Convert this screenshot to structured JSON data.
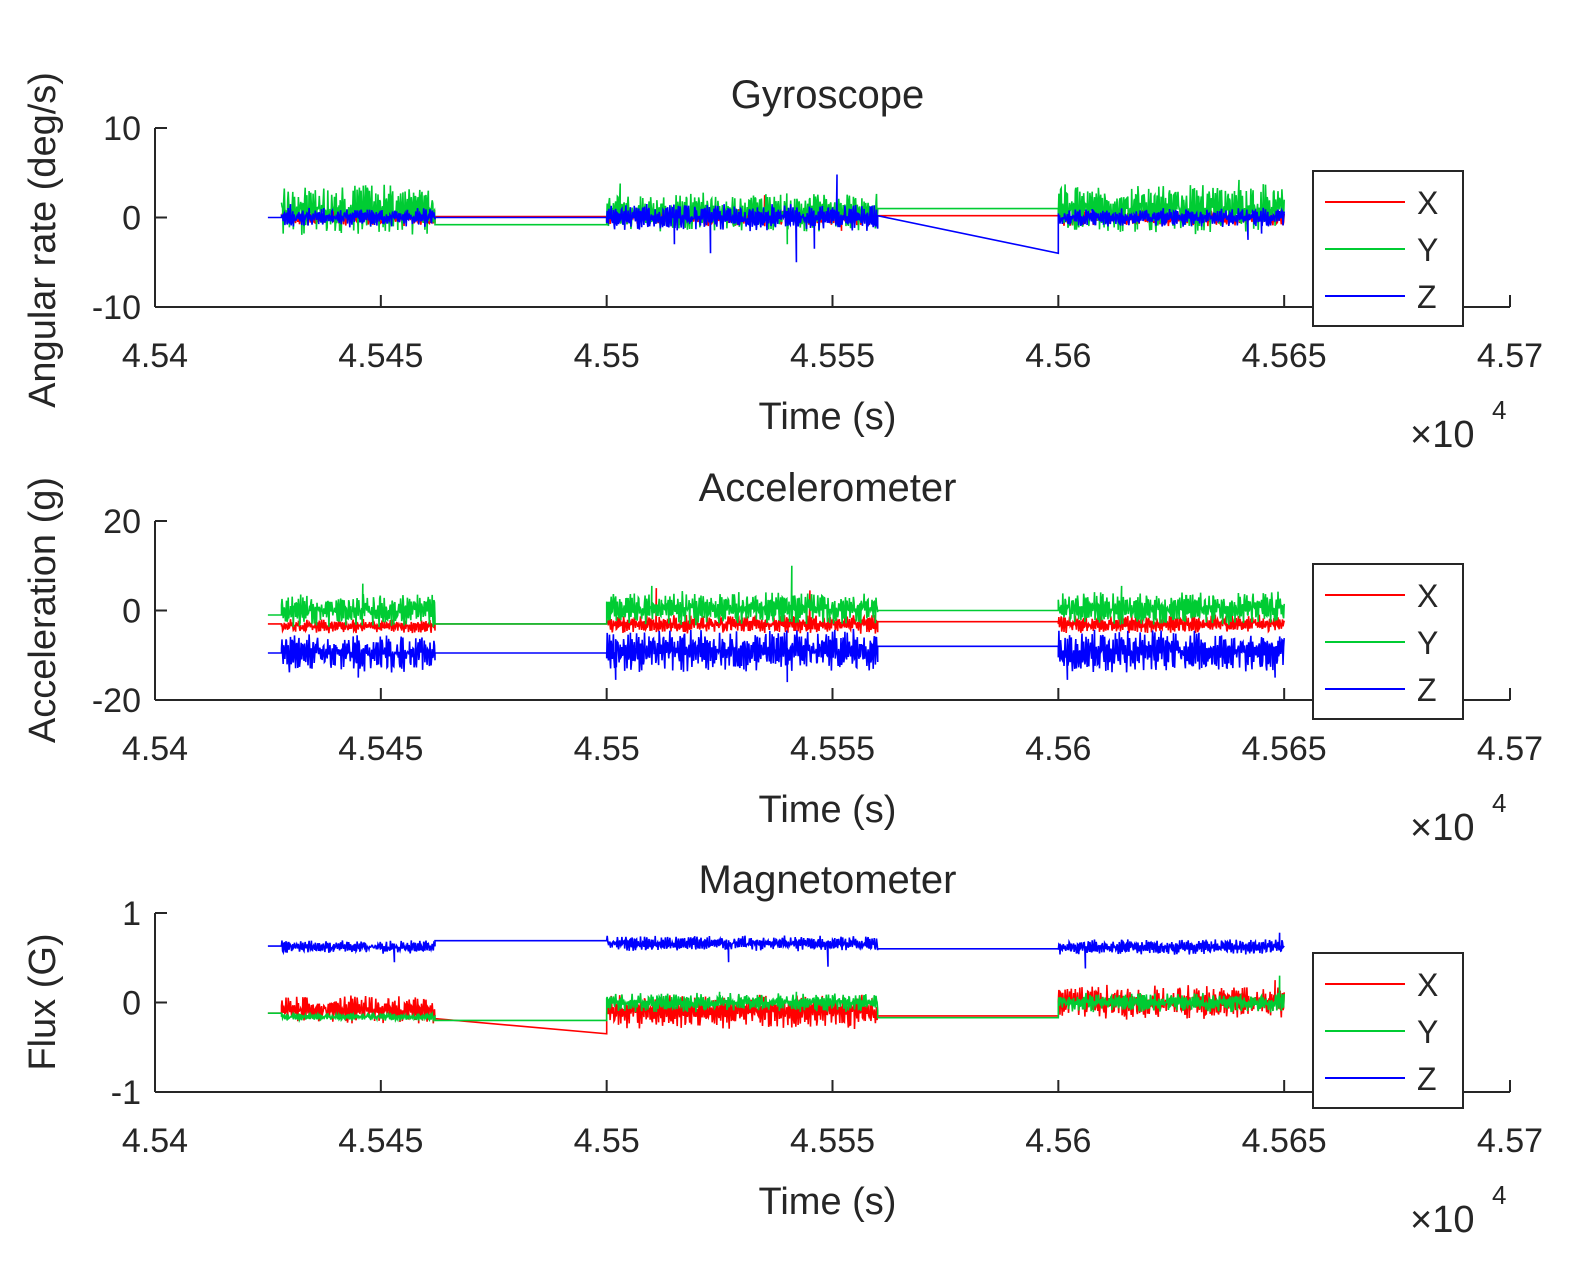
{
  "chart_data": [
    {
      "type": "line",
      "title": "Gyroscope",
      "xlabel": "Time (s)",
      "ylabel": "Angular rate (deg/s)",
      "x_exponent_label": "×10",
      "x_exponent_power": "4",
      "xlim": [
        4.54,
        4.57
      ],
      "ylim": [
        -10,
        10
      ],
      "xticks": [
        "4.54",
        "4.545",
        "4.55",
        "4.555",
        "4.56",
        "4.565",
        "4.57"
      ],
      "yticks": [
        "-10",
        "0",
        "10"
      ],
      "legend": "right",
      "series": [
        {
          "name": "X",
          "color": "#ff0000",
          "segments": [
            {
              "x": [
                4.5428,
                4.5462
              ],
              "base": 0.0,
              "amp": 0.9,
              "spikes": [
                [
                  4.5447,
                  2.5
                ]
              ]
            },
            {
              "x": [
                4.5462,
                4.55
              ],
              "base": 0.1,
              "amp": 0.0
            },
            {
              "x": [
                4.55,
                4.556
              ],
              "base": 0.0,
              "amp": 0.9,
              "spikes": [
                [
                  4.5535,
                  2.5
                ],
                [
                  4.5552,
                  -1.5
                ]
              ]
            },
            {
              "x": [
                4.556,
                4.56
              ],
              "base": 0.2,
              "amp": 0.0
            },
            {
              "x": [
                4.56,
                4.565
              ],
              "base": 0.0,
              "amp": 0.9,
              "spikes": [
                [
                  4.562,
                  2.0
                ]
              ]
            }
          ]
        },
        {
          "name": "Y",
          "color": "#00cc33",
          "segments": [
            {
              "x": [
                4.5428,
                4.5462
              ],
              "base": 0.9,
              "amp": 2.6,
              "spikes": []
            },
            {
              "x": [
                4.5462,
                4.55
              ],
              "base": -0.8,
              "amp": 0.0
            },
            {
              "x": [
                4.55,
                4.556
              ],
              "base": 0.6,
              "amp": 2.0,
              "spikes": [
                [
                  4.5503,
                  3.8
                ],
                [
                  4.554,
                  -3.0
                ]
              ]
            },
            {
              "x": [
                4.556,
                4.56
              ],
              "base": 1.0,
              "amp": 0.0
            },
            {
              "x": [
                4.56,
                4.565
              ],
              "base": 1.0,
              "amp": 2.6,
              "spikes": [
                [
                  4.564,
                  4.2
                ]
              ]
            }
          ]
        },
        {
          "name": "Z",
          "color": "#0000ff",
          "segments": [
            {
              "x": [
                4.5425,
                4.5428
              ],
              "base": 0.0,
              "amp": 0.0
            },
            {
              "x": [
                4.5428,
                4.5462
              ],
              "base": 0.0,
              "amp": 1.0,
              "spikes": [
                [
                  4.543,
                  1.5
                ]
              ]
            },
            {
              "x": [
                4.5462,
                4.55
              ],
              "base": 0.0,
              "amp": 0.0
            },
            {
              "x": [
                4.55,
                4.556
              ],
              "base": 0.0,
              "amp": 1.4,
              "spikes": [
                [
                  4.5523,
                  -4.0
                ],
                [
                  4.5542,
                  -5.0
                ],
                [
                  4.5551,
                  4.8
                ],
                [
                  4.5546,
                  -3.5
                ],
                [
                  4.5515,
                  -3.0
                ]
              ]
            },
            {
              "x": [
                4.556,
                4.56
              ],
              "base": 0.2,
              "amp": 0.0
            },
            {
              "x": [
                4.56,
                4.565
              ],
              "base": 0.0,
              "amp": 1.0,
              "spikes": [
                [
                  4.56,
                  -4.0
                ],
                [
                  4.5642,
                  -2.5
                ],
                [
                  4.5645,
                  -1.8
                ]
              ]
            }
          ]
        }
      ]
    },
    {
      "type": "line",
      "title": "Accelerometer",
      "xlabel": "Time (s)",
      "ylabel": "Acceleration (g)",
      "x_exponent_label": "×10",
      "x_exponent_power": "4",
      "xlim": [
        4.54,
        4.57
      ],
      "ylim": [
        -20,
        20
      ],
      "xticks": [
        "4.54",
        "4.545",
        "4.55",
        "4.555",
        "4.56",
        "4.565",
        "4.57"
      ],
      "yticks": [
        "-20",
        "0",
        "20"
      ],
      "legend": "right",
      "series": [
        {
          "name": "X",
          "color": "#ff0000",
          "segments": [
            {
              "x": [
                4.5425,
                4.5428
              ],
              "base": -3.0,
              "amp": 0.0
            },
            {
              "x": [
                4.5428,
                4.5462
              ],
              "base": -3.5,
              "amp": 1.5,
              "spikes": []
            },
            {
              "x": [
                4.5462,
                4.55
              ],
              "base": -3.0,
              "amp": 0.0
            },
            {
              "x": [
                4.55,
                4.556
              ],
              "base": -3.0,
              "amp": 2.0,
              "spikes": [
                [
                  4.5511,
                  5.0
                ],
                [
                  4.5545,
                  4.5
                ]
              ]
            },
            {
              "x": [
                4.556,
                4.56
              ],
              "base": -2.5,
              "amp": 0.0
            },
            {
              "x": [
                4.56,
                4.565
              ],
              "base": -3.0,
              "amp": 2.0,
              "spikes": []
            }
          ]
        },
        {
          "name": "Y",
          "color": "#00cc33",
          "segments": [
            {
              "x": [
                4.5425,
                4.5428
              ],
              "base": -1.0,
              "amp": 0.0
            },
            {
              "x": [
                4.5428,
                4.5462
              ],
              "base": 0.0,
              "amp": 3.5,
              "spikes": [
                [
                  4.5446,
                  6.0
                ]
              ]
            },
            {
              "x": [
                4.5462,
                4.55
              ],
              "base": -3.0,
              "amp": 0.0
            },
            {
              "x": [
                4.55,
                4.556
              ],
              "base": 0.5,
              "amp": 3.5,
              "spikes": [
                [
                  4.5541,
                  10.0
                ],
                [
                  4.551,
                  5.5
                ]
              ]
            },
            {
              "x": [
                4.556,
                4.56
              ],
              "base": 0.0,
              "amp": 0.0
            },
            {
              "x": [
                4.56,
                4.565
              ],
              "base": 0.5,
              "amp": 3.5,
              "spikes": [
                [
                  4.5614,
                  5.5
                ]
              ]
            }
          ]
        },
        {
          "name": "Z",
          "color": "#0000ff",
          "segments": [
            {
              "x": [
                4.5425,
                4.5428
              ],
              "base": -9.5,
              "amp": 0.0
            },
            {
              "x": [
                4.5428,
                4.5462
              ],
              "base": -9.5,
              "amp": 4.0,
              "spikes": [
                [
                  4.5445,
                  -15.0
                ]
              ]
            },
            {
              "x": [
                4.5462,
                4.55
              ],
              "base": -9.5,
              "amp": 0.0
            },
            {
              "x": [
                4.55,
                4.556
              ],
              "base": -9.0,
              "amp": 4.5,
              "spikes": [
                [
                  4.5502,
                  -15.5
                ],
                [
                  4.554,
                  -16.0
                ]
              ]
            },
            {
              "x": [
                4.556,
                4.56
              ],
              "base": -8.0,
              "amp": 0.0
            },
            {
              "x": [
                4.56,
                4.565
              ],
              "base": -9.0,
              "amp": 4.5,
              "spikes": [
                [
                  4.5602,
                  -15.5
                ],
                [
                  4.5648,
                  -15.0
                ]
              ]
            }
          ]
        }
      ]
    },
    {
      "type": "line",
      "title": "Magnetometer",
      "xlabel": "Time (s)",
      "ylabel": "Flux (G)",
      "x_exponent_label": "×10",
      "x_exponent_power": "4",
      "xlim": [
        4.54,
        4.57
      ],
      "ylim": [
        -1,
        1
      ],
      "xticks": [
        "4.54",
        "4.545",
        "4.55",
        "4.555",
        "4.56",
        "4.565",
        "4.57"
      ],
      "yticks": [
        "-1",
        "0",
        "1"
      ],
      "legend": "right",
      "series": [
        {
          "name": "X",
          "color": "#ff0000",
          "segments": [
            {
              "x": [
                4.5425,
                4.5428
              ],
              "base": -0.12,
              "amp": 0.0
            },
            {
              "x": [
                4.5428,
                4.5462
              ],
              "base": -0.08,
              "amp": 0.15,
              "spikes": []
            },
            {
              "x": [
                4.5462,
                4.55
              ],
              "base": -0.18,
              "amp": 0.0
            },
            {
              "x": [
                4.55,
                4.556
              ],
              "base": -0.1,
              "amp": 0.18,
              "spikes": [
                [
                  4.55,
                  -0.35
                ]
              ]
            },
            {
              "x": [
                4.556,
                4.56
              ],
              "base": -0.15,
              "amp": 0.0
            },
            {
              "x": [
                4.56,
                4.565
              ],
              "base": 0.0,
              "amp": 0.18,
              "spikes": [
                [
                  4.5648,
                  0.25
                ]
              ]
            }
          ]
        },
        {
          "name": "Y",
          "color": "#00cc33",
          "segments": [
            {
              "x": [
                4.5425,
                4.5428
              ],
              "base": -0.12,
              "amp": 0.0
            },
            {
              "x": [
                4.5428,
                4.5462
              ],
              "base": -0.16,
              "amp": 0.04,
              "spikes": []
            },
            {
              "x": [
                4.5462,
                4.55
              ],
              "base": -0.2,
              "amp": 0.0
            },
            {
              "x": [
                4.55,
                4.556
              ],
              "base": 0.0,
              "amp": 0.1,
              "spikes": [
                [
                  4.5525,
                  0.12
                ],
                [
                  4.5542,
                  0.12
                ]
              ]
            },
            {
              "x": [
                4.556,
                4.56
              ],
              "base": -0.17,
              "amp": 0.0
            },
            {
              "x": [
                4.56,
                4.565
              ],
              "base": 0.0,
              "amp": 0.1,
              "spikes": [
                [
                  4.5649,
                  0.3
                ]
              ]
            }
          ]
        },
        {
          "name": "Z",
          "color": "#0000ff",
          "segments": [
            {
              "x": [
                4.5425,
                4.5428
              ],
              "base": 0.63,
              "amp": 0.0
            },
            {
              "x": [
                4.5428,
                4.5462
              ],
              "base": 0.62,
              "amp": 0.07,
              "spikes": [
                [
                  4.5453,
                  0.45
                ]
              ]
            },
            {
              "x": [
                4.5462,
                4.55
              ],
              "base": 0.69,
              "amp": 0.0
            },
            {
              "x": [
                4.55,
                4.556
              ],
              "base": 0.66,
              "amp": 0.08,
              "spikes": [
                [
                  4.5527,
                  0.45
                ],
                [
                  4.5549,
                  0.4
                ]
              ]
            },
            {
              "x": [
                4.556,
                4.56
              ],
              "base": 0.6,
              "amp": 0.0
            },
            {
              "x": [
                4.56,
                4.565
              ],
              "base": 0.62,
              "amp": 0.08,
              "spikes": [
                [
                  4.5606,
                  0.38
                ],
                [
                  4.5649,
                  0.78
                ]
              ]
            }
          ]
        }
      ]
    }
  ]
}
